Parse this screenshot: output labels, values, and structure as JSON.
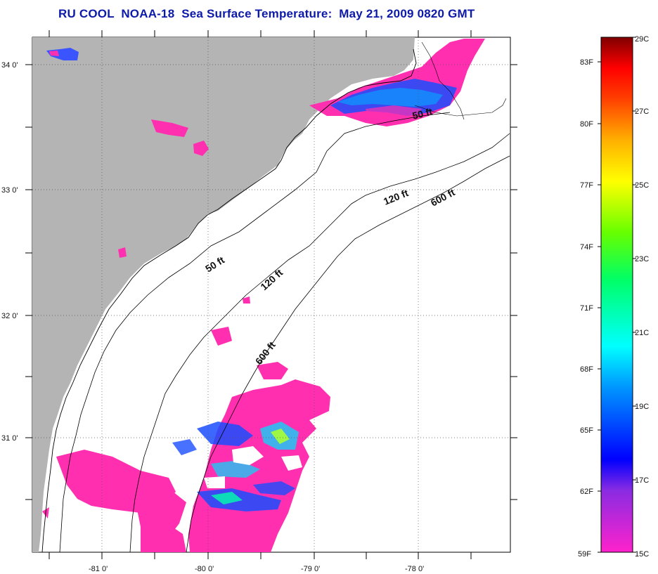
{
  "title": "RU COOL  NOAA-18  Sea Surface Temperature:  May 21, 2009 0820 GMT",
  "colors": {
    "land": "#b4b4b4",
    "no_data": "#ffffff",
    "sst_cold": "#ff2fb0",
    "coast": "#000000",
    "grid": "#666666",
    "title_color": "#0d1aa8"
  },
  "map": {
    "lon_labels": [
      "-81 0'",
      "-80 0'",
      "-79 0'",
      "-78 0'"
    ],
    "lat_labels": [
      "34 0'",
      "33 0'",
      "32 0'",
      "31 0'"
    ],
    "grid": true
  },
  "isobaths": [
    {
      "id": "iso-50-north",
      "label": "50 ft"
    },
    {
      "id": "iso-120-north",
      "label": "120 ft"
    },
    {
      "id": "iso-600-north",
      "label": "600 ft"
    },
    {
      "id": "iso-50-south",
      "label": "50 ft"
    },
    {
      "id": "iso-120-south",
      "label": "120 ft"
    },
    {
      "id": "iso-600-south",
      "label": "600 ft"
    }
  ],
  "colorbar": {
    "celsius_labels": [
      "29C",
      "27C",
      "25C",
      "23C",
      "21C",
      "19C",
      "17C",
      "15C"
    ],
    "fahrenheit_labels": [
      "83F",
      "80F",
      "77F",
      "74F",
      "71F",
      "68F",
      "65F",
      "62F",
      "59F"
    ],
    "min_c": 15,
    "max_c": 29,
    "min_f": 59,
    "max_f": 83
  }
}
